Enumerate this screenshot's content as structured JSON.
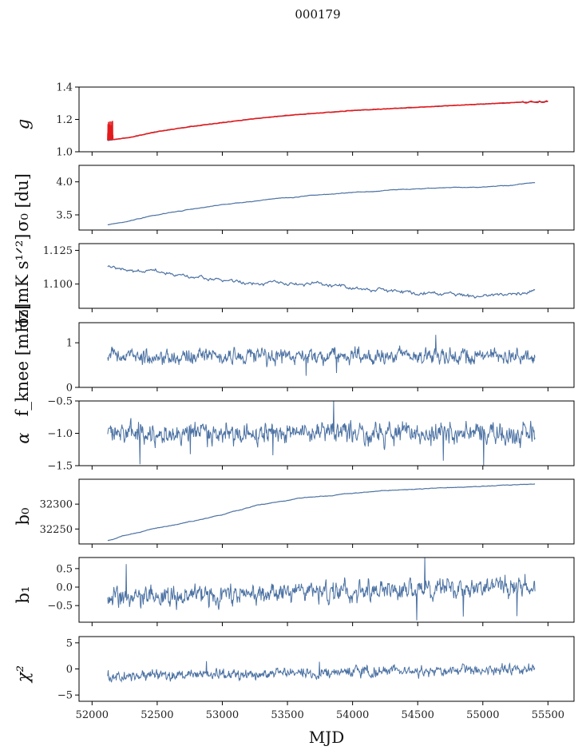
{
  "figure": {
    "suptitle": "000179",
    "xlabel": "MJD",
    "x_range": [
      51900,
      55700
    ],
    "x_ticks": [
      52000,
      52500,
      53000,
      53500,
      54000,
      54500,
      55000,
      55500
    ],
    "x_tick_labels": [
      "52000",
      "52500",
      "53000",
      "53500",
      "54000",
      "54500",
      "55000",
      "55500"
    ],
    "line_color": "#4c72a3",
    "fit_color": "#e31a1c"
  },
  "chart_data": [
    {
      "type": "line",
      "key": "g",
      "ylabel": "g",
      "ylim": [
        1.0,
        1.4
      ],
      "yticks": [
        1.0,
        1.2,
        1.4
      ],
      "ytick_labels": [
        "1.0",
        "1.2",
        "1.4"
      ],
      "x_start": 52120,
      "x_end": 55500,
      "series": [
        {
          "name": "g (data)",
          "x": [
            52120,
            52300,
            52500,
            52750,
            53000,
            53250,
            53500,
            53750,
            54000,
            54250,
            54500,
            54750,
            55000,
            55250,
            55500
          ],
          "values": [
            1.07,
            1.09,
            1.125,
            1.155,
            1.18,
            1.205,
            1.225,
            1.24,
            1.255,
            1.265,
            1.275,
            1.285,
            1.295,
            1.305,
            1.31
          ]
        },
        {
          "name": "g (fit)",
          "x": [
            52120,
            52300,
            52500,
            52750,
            53000,
            53250,
            53500,
            53750,
            54000,
            54250,
            54500,
            54750,
            55000,
            55250,
            55500
          ],
          "values": [
            1.07,
            1.09,
            1.125,
            1.155,
            1.18,
            1.205,
            1.225,
            1.24,
            1.255,
            1.265,
            1.275,
            1.285,
            1.295,
            1.305,
            1.31
          ]
        }
      ]
    },
    {
      "type": "line",
      "key": "sigma0_du",
      "ylabel": "σ₀ [du]",
      "ylim": [
        3.27,
        4.25
      ],
      "yticks": [
        3.5,
        4.0
      ],
      "ytick_labels": [
        "3.5",
        "4.0"
      ],
      "series": [
        {
          "name": "sigma0_du",
          "x": [
            52120,
            52300,
            52500,
            52750,
            53000,
            53250,
            53500,
            53750,
            54000,
            54250,
            54500,
            54750,
            55000,
            55250,
            55400
          ],
          "values": [
            3.35,
            3.42,
            3.5,
            3.58,
            3.65,
            3.71,
            3.76,
            3.8,
            3.84,
            3.87,
            3.89,
            3.91,
            3.93,
            3.95,
            3.99
          ]
        }
      ]
    },
    {
      "type": "line",
      "key": "sigma0_mK",
      "ylabel": "σ₀[mK s¹ᐟ²]",
      "ylim": [
        1.082,
        1.13
      ],
      "yticks": [
        1.1,
        1.125
      ],
      "ytick_labels": [
        "1.100",
        "1.125"
      ],
      "series": [
        {
          "name": "sigma0_mK",
          "x": [
            52120,
            52300,
            52500,
            52750,
            53000,
            53250,
            53500,
            53750,
            54000,
            54250,
            54500,
            54750,
            55000,
            55250,
            55400
          ],
          "values": [
            1.113,
            1.111,
            1.108,
            1.104,
            1.103,
            1.101,
            1.099,
            1.098,
            1.097,
            1.096,
            1.093,
            1.092,
            1.091,
            1.09,
            1.093
          ]
        }
      ]
    },
    {
      "type": "line",
      "key": "fknee",
      "ylabel": "f_knee [mHz]",
      "ylim": [
        0,
        1.45
      ],
      "yticks": [
        0,
        1
      ],
      "ytick_labels": [
        "0",
        "1"
      ],
      "series": [
        {
          "name": "fknee",
          "mean": 0.7,
          "spread": 0.13,
          "x_start": 52120,
          "x_end": 55400
        }
      ]
    },
    {
      "type": "line",
      "key": "alpha",
      "ylabel": "α",
      "ylim": [
        -1.5,
        -0.5
      ],
      "yticks": [
        -1.5,
        -1.0,
        -0.5
      ],
      "ytick_labels": [
        "−1.5",
        "−1.0",
        "−0.5"
      ],
      "series": [
        {
          "name": "alpha",
          "mean": -1.0,
          "spread": 0.13,
          "x_start": 52120,
          "x_end": 55400
        }
      ]
    },
    {
      "type": "line",
      "key": "b0",
      "ylabel": "b₀",
      "ylim": [
        32220,
        32350
      ],
      "yticks": [
        32250,
        32300
      ],
      "ytick_labels": [
        "32250",
        "32300"
      ],
      "series": [
        {
          "name": "b0",
          "x": [
            52120,
            52300,
            52500,
            52750,
            53000,
            53250,
            53500,
            53750,
            54000,
            54250,
            54500,
            54750,
            55000,
            55250,
            55400
          ],
          "values": [
            32227,
            32240,
            32252,
            32265,
            32278,
            32297,
            32308,
            32316,
            32322,
            32327,
            32330,
            32333,
            32336,
            32339,
            32340
          ]
        }
      ]
    },
    {
      "type": "line",
      "key": "b1",
      "ylabel": "b₁",
      "ylim": [
        -0.95,
        0.8
      ],
      "yticks": [
        -0.5,
        0.0,
        0.5
      ],
      "ytick_labels": [
        "−0.5",
        "0.0",
        "0.5"
      ],
      "series": [
        {
          "name": "b1",
          "mean_start": -0.3,
          "mean_end": 0.05,
          "spread": 0.22,
          "x_start": 52120,
          "x_end": 55400
        }
      ]
    },
    {
      "type": "line",
      "key": "chi2",
      "ylabel": "χ²",
      "ylim": [
        -6.2,
        6.2
      ],
      "yticks": [
        -5,
        0,
        5
      ],
      "ytick_labels": [
        "−5",
        "0",
        "5"
      ],
      "series": [
        {
          "name": "chi2",
          "mean_start": -1.5,
          "mean_end": 0.0,
          "spread": 0.8,
          "x_start": 52120,
          "x_end": 55400
        }
      ]
    }
  ]
}
